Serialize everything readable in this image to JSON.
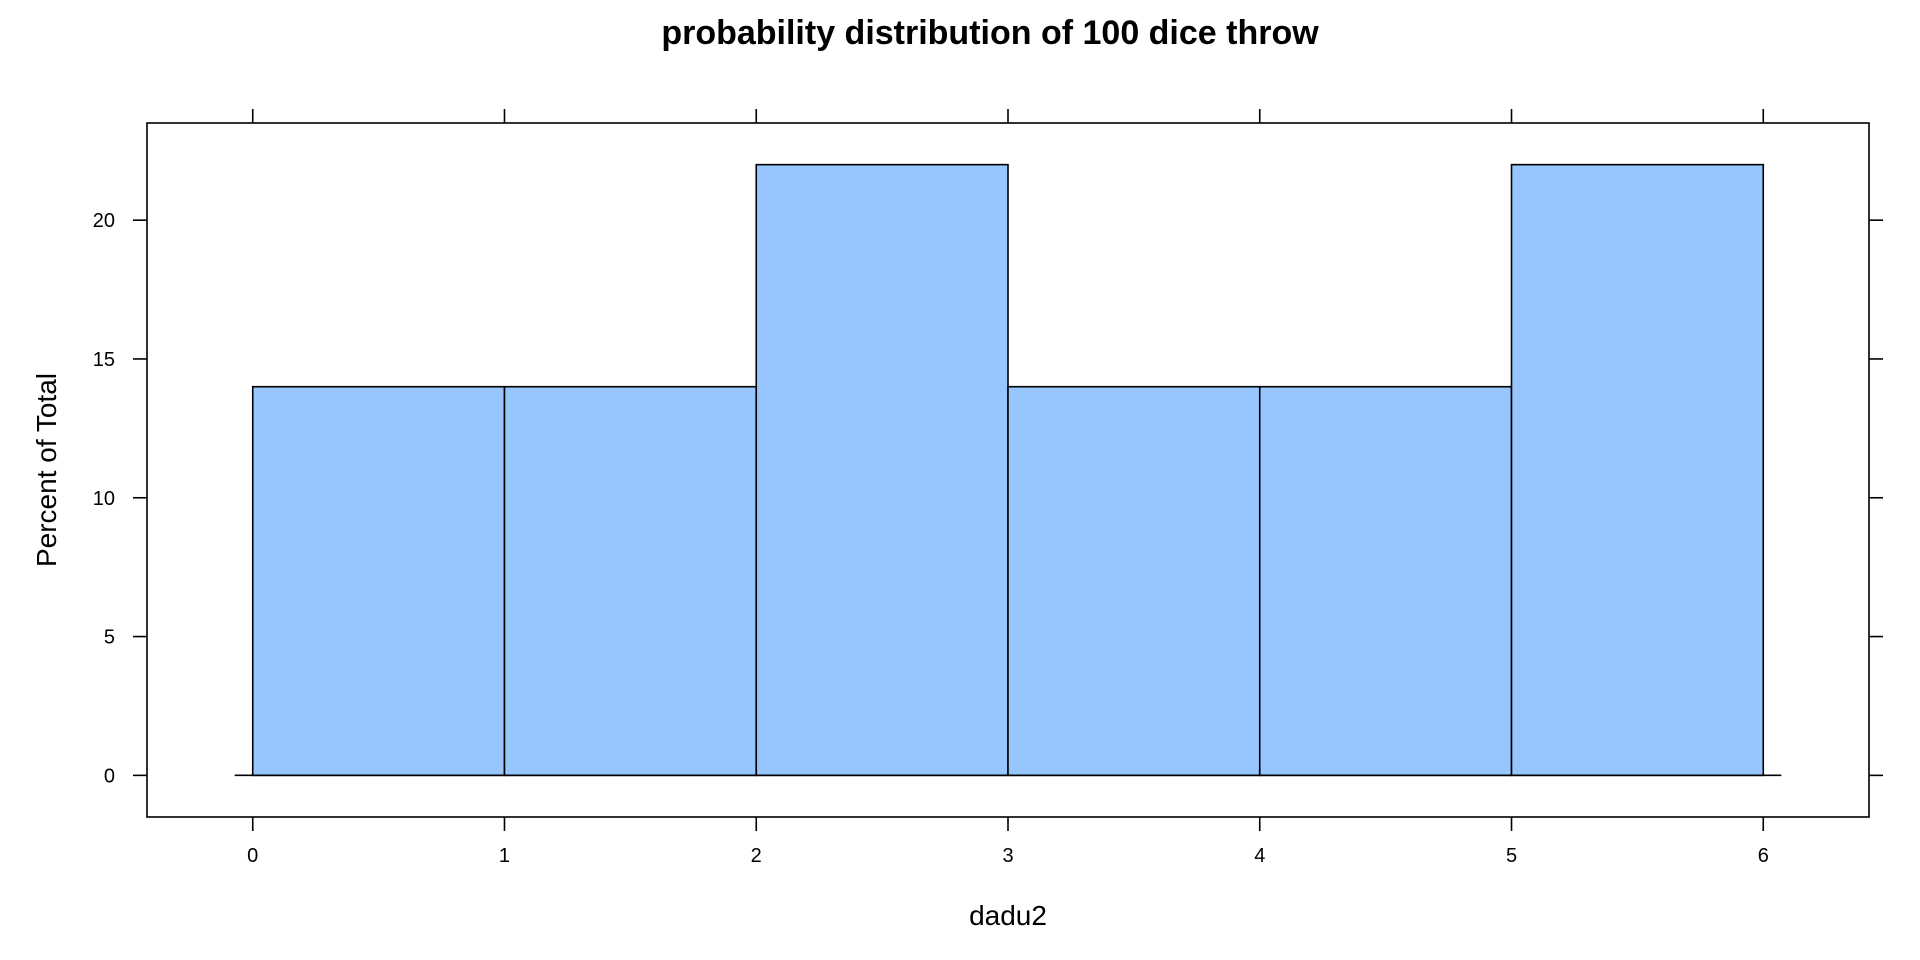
{
  "chart_data": {
    "type": "bar",
    "title": "probability distribution of 100 dice throw",
    "xlabel": "dadu2",
    "ylabel": "Percent of Total",
    "bins": [
      {
        "from": 0,
        "to": 1,
        "value": 14
      },
      {
        "from": 1,
        "to": 2,
        "value": 14
      },
      {
        "from": 2,
        "to": 3,
        "value": 22
      },
      {
        "from": 3,
        "to": 4,
        "value": 14
      },
      {
        "from": 4,
        "to": 5,
        "value": 14
      },
      {
        "from": 5,
        "to": 6,
        "value": 22
      }
    ],
    "x_ticks": [
      "0",
      "1",
      "2",
      "3",
      "4",
      "5",
      "6"
    ],
    "y_ticks": [
      "0",
      "5",
      "10",
      "15",
      "20"
    ],
    "xlim": [
      -0.42,
      6.42
    ],
    "ylim": [
      -1.5,
      23.5
    ],
    "bar_color": "#96c6fd",
    "grid": false,
    "legend": "none"
  }
}
